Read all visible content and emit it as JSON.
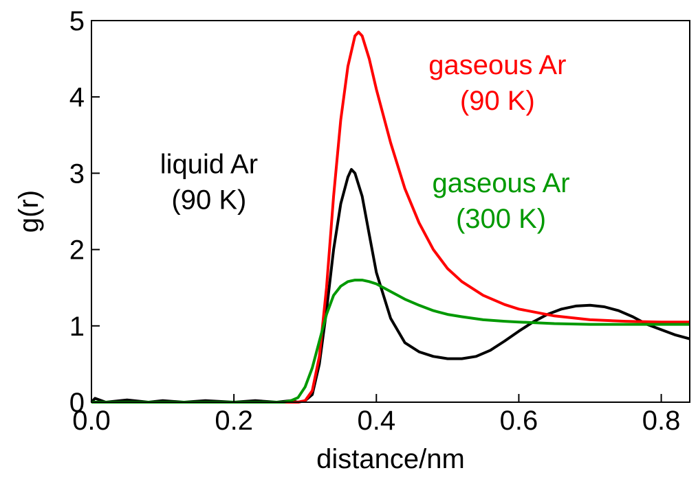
{
  "chart_data": {
    "type": "line",
    "title": "",
    "xlabel": "distance/nm",
    "ylabel": "g(r)",
    "xlim": [
      0.0,
      0.84
    ],
    "ylim": [
      0,
      5
    ],
    "x_ticks": [
      0.0,
      0.2,
      0.4,
      0.6,
      0.8
    ],
    "x_tick_labels": [
      "0.0",
      "0.2",
      "0.4",
      "0.6",
      "0.8"
    ],
    "y_ticks": [
      0,
      1,
      2,
      3,
      4,
      5
    ],
    "y_tick_labels": [
      "0",
      "1",
      "2",
      "3",
      "4",
      "5"
    ],
    "grid": false,
    "legend": "none",
    "annotations": [
      {
        "line1": "liquid Ar",
        "line2": "(90 K)",
        "color": "#000000",
        "x": 0.165,
        "y": 3.0,
        "series": 0
      },
      {
        "line1": "gaseous Ar",
        "line2": "(90 K)",
        "color": "#ff0000",
        "x": 0.57,
        "y": 4.3,
        "series": 1
      },
      {
        "line1": "gaseous Ar",
        "line2": "(300 K)",
        "color": "#009900",
        "x": 0.575,
        "y": 2.75,
        "series": 2
      }
    ],
    "series": [
      {
        "color": "#000000",
        "x": [
          0.0,
          0.005,
          0.02,
          0.05,
          0.08,
          0.1,
          0.13,
          0.16,
          0.2,
          0.23,
          0.26,
          0.28,
          0.29,
          0.3,
          0.31,
          0.32,
          0.33,
          0.34,
          0.35,
          0.36,
          0.365,
          0.37,
          0.38,
          0.39,
          0.4,
          0.42,
          0.44,
          0.46,
          0.48,
          0.5,
          0.52,
          0.54,
          0.56,
          0.58,
          0.6,
          0.62,
          0.64,
          0.66,
          0.68,
          0.7,
          0.72,
          0.74,
          0.76,
          0.78,
          0.8,
          0.82,
          0.84
        ],
        "y": [
          0.0,
          0.05,
          0.0,
          0.03,
          0.0,
          0.02,
          0.0,
          0.02,
          0.0,
          0.02,
          0.0,
          0.02,
          0.0,
          0.02,
          0.1,
          0.5,
          1.2,
          2.0,
          2.6,
          2.95,
          3.05,
          3.0,
          2.7,
          2.2,
          1.7,
          1.1,
          0.78,
          0.66,
          0.6,
          0.57,
          0.57,
          0.6,
          0.68,
          0.8,
          0.93,
          1.05,
          1.15,
          1.22,
          1.26,
          1.27,
          1.25,
          1.2,
          1.12,
          1.02,
          0.95,
          0.88,
          0.83
        ]
      },
      {
        "color": "#ff0000",
        "x": [
          0.0,
          0.1,
          0.2,
          0.25,
          0.29,
          0.3,
          0.31,
          0.32,
          0.33,
          0.34,
          0.35,
          0.36,
          0.37,
          0.375,
          0.38,
          0.39,
          0.4,
          0.42,
          0.44,
          0.46,
          0.48,
          0.5,
          0.52,
          0.55,
          0.58,
          0.6,
          0.65,
          0.7,
          0.75,
          0.8,
          0.84
        ],
        "y": [
          0.0,
          0.0,
          0.0,
          0.0,
          0.0,
          0.02,
          0.15,
          0.6,
          1.5,
          2.7,
          3.7,
          4.4,
          4.8,
          4.85,
          4.8,
          4.5,
          4.1,
          3.4,
          2.8,
          2.35,
          2.0,
          1.75,
          1.58,
          1.4,
          1.28,
          1.22,
          1.13,
          1.08,
          1.06,
          1.05,
          1.05
        ]
      },
      {
        "color": "#009900",
        "x": [
          0.0,
          0.1,
          0.2,
          0.25,
          0.27,
          0.28,
          0.29,
          0.3,
          0.31,
          0.32,
          0.33,
          0.34,
          0.35,
          0.36,
          0.37,
          0.38,
          0.39,
          0.4,
          0.42,
          0.44,
          0.46,
          0.48,
          0.5,
          0.52,
          0.55,
          0.58,
          0.6,
          0.65,
          0.7,
          0.75,
          0.8,
          0.84
        ],
        "y": [
          0.0,
          0.0,
          0.0,
          0.0,
          0.0,
          0.02,
          0.06,
          0.2,
          0.45,
          0.8,
          1.15,
          1.4,
          1.52,
          1.58,
          1.6,
          1.6,
          1.58,
          1.55,
          1.45,
          1.35,
          1.27,
          1.2,
          1.15,
          1.12,
          1.08,
          1.06,
          1.05,
          1.03,
          1.02,
          1.02,
          1.02,
          1.02
        ]
      }
    ]
  }
}
